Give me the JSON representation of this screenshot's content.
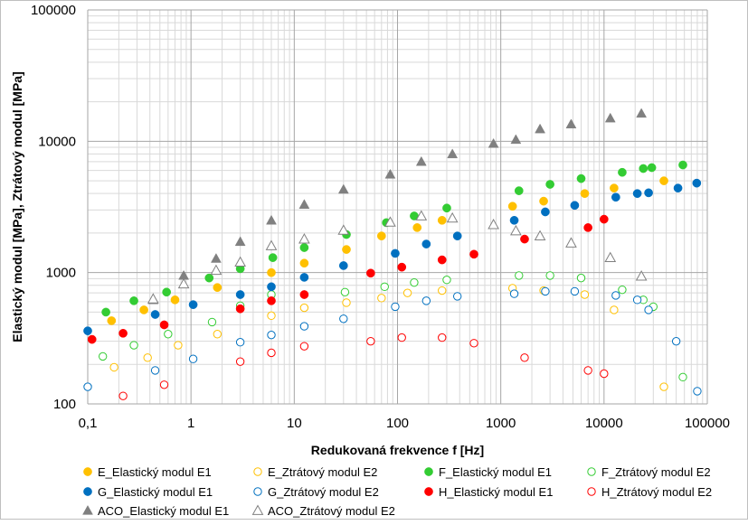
{
  "chart_data": {
    "type": "scatter",
    "xlabel": "Redukovaná frekvence f [Hz]",
    "ylabel": "Elastický modul [MPa], Ztrátový modul [MPa]",
    "xscale": "log",
    "yscale": "log",
    "xlim": [
      0.1,
      100000
    ],
    "ylim": [
      100,
      100000
    ],
    "x_ticks": [
      "0,1",
      "1",
      "10",
      "100",
      "1000",
      "10000",
      "100000"
    ],
    "y_ticks": [
      "100",
      "1000",
      "10000",
      "100000"
    ],
    "grid": true,
    "legend_position": "bottom",
    "series": [
      {
        "name": "E_Elastický modul E1",
        "color": "#FFC000",
        "marker": "circle-filled",
        "points": [
          [
            0.17,
            430
          ],
          [
            0.35,
            520
          ],
          [
            0.7,
            620
          ],
          [
            1.8,
            770
          ],
          [
            6,
            1000
          ],
          [
            12.5,
            1180
          ],
          [
            32,
            1500
          ],
          [
            70,
            1900
          ],
          [
            155,
            2200
          ],
          [
            270,
            2500
          ],
          [
            1300,
            3200
          ],
          [
            2600,
            3500
          ],
          [
            6500,
            4000
          ],
          [
            12500,
            4400
          ],
          [
            38000,
            5000
          ]
        ]
      },
      {
        "name": "E_Ztrátový modul E2",
        "color": "#FFC000",
        "marker": "circle-open",
        "points": [
          [
            0.18,
            190
          ],
          [
            0.38,
            225
          ],
          [
            0.75,
            280
          ],
          [
            1.8,
            340
          ],
          [
            6,
            470
          ],
          [
            12.5,
            540
          ],
          [
            32,
            590
          ],
          [
            70,
            640
          ],
          [
            125,
            700
          ],
          [
            270,
            730
          ],
          [
            1300,
            760
          ],
          [
            2600,
            730
          ],
          [
            6500,
            680
          ],
          [
            12500,
            520
          ],
          [
            38000,
            135
          ]
        ]
      },
      {
        "name": "F_Elastický modul E1",
        "color": "#33CC33",
        "marker": "circle-filled",
        "points": [
          [
            0.15,
            500
          ],
          [
            0.28,
            610
          ],
          [
            0.58,
            710
          ],
          [
            1.5,
            910
          ],
          [
            3,
            1070
          ],
          [
            6.2,
            1300
          ],
          [
            12.5,
            1550
          ],
          [
            32,
            1950
          ],
          [
            78,
            2400
          ],
          [
            145,
            2700
          ],
          [
            300,
            3100
          ],
          [
            1500,
            4200
          ],
          [
            3000,
            4700
          ],
          [
            6000,
            5200
          ],
          [
            15000,
            5800
          ],
          [
            24000,
            6200
          ],
          [
            29000,
            6300
          ],
          [
            58000,
            6600
          ]
        ]
      },
      {
        "name": "F_Ztrátový modul E2",
        "color": "#33CC33",
        "marker": "circle-open",
        "points": [
          [
            0.14,
            230
          ],
          [
            0.28,
            280
          ],
          [
            0.6,
            340
          ],
          [
            1.6,
            420
          ],
          [
            3,
            560
          ],
          [
            6,
            680
          ],
          [
            31,
            710
          ],
          [
            75,
            780
          ],
          [
            145,
            840
          ],
          [
            300,
            880
          ],
          [
            1500,
            950
          ],
          [
            3000,
            950
          ],
          [
            6000,
            910
          ],
          [
            15000,
            740
          ],
          [
            24000,
            620
          ],
          [
            30000,
            550
          ],
          [
            58000,
            160
          ]
        ]
      },
      {
        "name": "G_Elastický modul E1",
        "color": "#0070C0",
        "marker": "circle-filled",
        "points": [
          [
            0.1,
            360
          ],
          [
            0.45,
            480
          ],
          [
            1.05,
            570
          ],
          [
            3,
            680
          ],
          [
            6,
            780
          ],
          [
            12.5,
            920
          ],
          [
            30,
            1130
          ],
          [
            95,
            1400
          ],
          [
            190,
            1650
          ],
          [
            380,
            1900
          ],
          [
            1350,
            2500
          ],
          [
            2700,
            2900
          ],
          [
            5200,
            3250
          ],
          [
            13000,
            3750
          ],
          [
            21000,
            4000
          ],
          [
            27000,
            4050
          ],
          [
            52000,
            4400
          ],
          [
            79000,
            4800
          ]
        ]
      },
      {
        "name": "G_Ztrátový modul E2",
        "color": "#0070C0",
        "marker": "circle-open",
        "points": [
          [
            0.1,
            135
          ],
          [
            0.45,
            180
          ],
          [
            1.05,
            220
          ],
          [
            3,
            295
          ],
          [
            6,
            335
          ],
          [
            12.5,
            390
          ],
          [
            30,
            445
          ],
          [
            95,
            550
          ],
          [
            190,
            610
          ],
          [
            380,
            660
          ],
          [
            1350,
            690
          ],
          [
            2700,
            720
          ],
          [
            5200,
            720
          ],
          [
            13000,
            670
          ],
          [
            21000,
            620
          ],
          [
            27000,
            520
          ],
          [
            50000,
            300
          ],
          [
            80000,
            125
          ]
        ]
      },
      {
        "name": "H_Elastický modul E1",
        "color": "#FF0000",
        "marker": "circle-filled",
        "points": [
          [
            0.11,
            310
          ],
          [
            0.22,
            345
          ],
          [
            0.55,
            400
          ],
          [
            3,
            530
          ],
          [
            6,
            610
          ],
          [
            12.5,
            680
          ],
          [
            55,
            990
          ],
          [
            110,
            1100
          ],
          [
            270,
            1250
          ],
          [
            550,
            1380
          ],
          [
            1700,
            1800
          ],
          [
            7000,
            2200
          ],
          [
            10000,
            2550
          ]
        ]
      },
      {
        "name": "H_Ztrátový modul E2",
        "color": "#FF0000",
        "marker": "circle-open",
        "points": [
          [
            0.22,
            115
          ],
          [
            0.55,
            140
          ],
          [
            3,
            210
          ],
          [
            6,
            245
          ],
          [
            12.5,
            275
          ],
          [
            55,
            300
          ],
          [
            110,
            320
          ],
          [
            270,
            320
          ],
          [
            550,
            290
          ],
          [
            1700,
            225
          ],
          [
            7000,
            180
          ],
          [
            10000,
            170
          ]
        ]
      },
      {
        "name": "ACO_Elastický modul E1",
        "color": "#808080",
        "marker": "triangle-filled",
        "points": [
          [
            0.43,
            620
          ],
          [
            0.85,
            950
          ],
          [
            1.75,
            1280
          ],
          [
            3,
            1720
          ],
          [
            6,
            2500
          ],
          [
            12.5,
            3300
          ],
          [
            30,
            4300
          ],
          [
            85,
            5600
          ],
          [
            170,
            7000
          ],
          [
            340,
            8000
          ],
          [
            850,
            9600
          ],
          [
            1400,
            10300
          ],
          [
            2400,
            12400
          ],
          [
            4800,
            13500
          ],
          [
            11500,
            15000
          ],
          [
            23000,
            16300
          ]
        ]
      },
      {
        "name": "ACO_Ztrátový modul E2",
        "color": "#808080",
        "marker": "triangle-open",
        "points": [
          [
            0.43,
            630
          ],
          [
            0.85,
            820
          ],
          [
            1.75,
            1040
          ],
          [
            3,
            1200
          ],
          [
            6,
            1600
          ],
          [
            12.5,
            1800
          ],
          [
            30,
            2100
          ],
          [
            85,
            2420
          ],
          [
            170,
            2700
          ],
          [
            340,
            2600
          ],
          [
            850,
            2320
          ],
          [
            1400,
            2080
          ],
          [
            2400,
            1900
          ],
          [
            4800,
            1680
          ],
          [
            11500,
            1300
          ],
          [
            23000,
            940
          ]
        ]
      }
    ]
  }
}
